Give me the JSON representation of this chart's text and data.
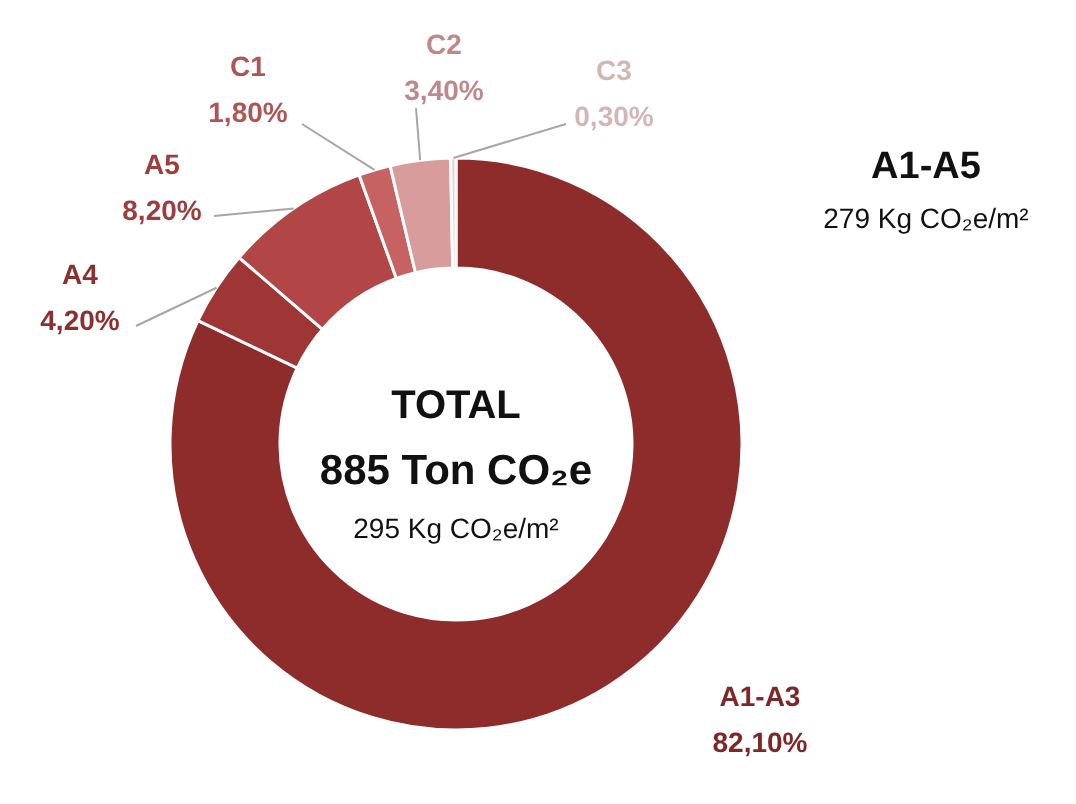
{
  "chart_data": {
    "type": "donut",
    "categories": [
      "A1-A3",
      "A4",
      "A5",
      "C1",
      "C2",
      "C3"
    ],
    "values": [
      82.1,
      4.2,
      8.2,
      1.8,
      3.4,
      0.3
    ],
    "value_labels": [
      "82,10%",
      "4,20%",
      "8,20%",
      "1,80%",
      "3,40%",
      "0,30%"
    ],
    "colors": [
      "#8e2c2c",
      "#9e3636",
      "#b24646",
      "#c66262",
      "#d99c9c",
      "#efcfcf"
    ],
    "annotations": [
      "TOTAL",
      "885 Ton CO₂e",
      "295 Kg CO₂e/m²",
      "A1-A5",
      "279 Kg CO₂e/m²"
    ]
  }
}
